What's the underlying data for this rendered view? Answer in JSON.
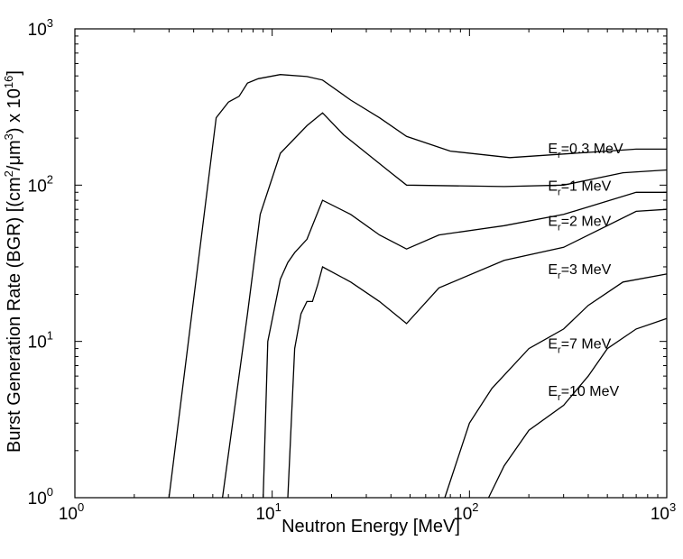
{
  "chart_data": {
    "type": "line",
    "xscale": "log",
    "yscale": "log",
    "xlim": [
      1,
      1000
    ],
    "ylim": [
      1,
      1000
    ],
    "grid": false,
    "xlabel": "Neutron Energy [MeV]",
    "ylabel": {
      "main": "Burst Generation Rate (BGR) [(cm",
      "sup1": "2",
      "mid": "/μm",
      "sup2": "3",
      "end": ") x 10",
      "sup3": "16",
      "close": "]"
    },
    "x_ticks": [
      {
        "base": "10",
        "exp": "0",
        "value": 1
      },
      {
        "base": "10",
        "exp": "1",
        "value": 10
      },
      {
        "base": "10",
        "exp": "2",
        "value": 100
      },
      {
        "base": "10",
        "exp": "3",
        "value": 1000
      }
    ],
    "y_ticks": [
      {
        "base": "10",
        "exp": "0",
        "value": 1
      },
      {
        "base": "10",
        "exp": "1",
        "value": 10
      },
      {
        "base": "10",
        "exp": "2",
        "value": 100
      },
      {
        "base": "10",
        "exp": "3",
        "value": 1000
      }
    ],
    "series": [
      {
        "name": "Er=0.3 MeV",
        "label_main": "E",
        "label_sub": "r",
        "label_rest": "=0.3 MeV",
        "label_at": [
          250,
          160
        ],
        "points": [
          [
            3,
            1
          ],
          [
            5.2,
            270
          ],
          [
            6,
            340
          ],
          [
            6.8,
            370
          ],
          [
            7.5,
            450
          ],
          [
            8.5,
            480
          ],
          [
            11,
            510
          ],
          [
            15,
            495
          ],
          [
            18,
            470
          ],
          [
            25,
            350
          ],
          [
            35,
            270
          ],
          [
            48,
            205
          ],
          [
            80,
            165
          ],
          [
            160,
            150
          ],
          [
            500,
            165
          ],
          [
            700,
            170
          ],
          [
            1000,
            170
          ]
        ]
      },
      {
        "name": "Er=1 MeV",
        "label_main": "E",
        "label_sub": "r",
        "label_rest": "=1 MeV",
        "label_at": [
          250,
          92
        ],
        "points": [
          [
            5.6,
            1
          ],
          [
            7.5,
            15
          ],
          [
            8.7,
            65
          ],
          [
            11,
            160
          ],
          [
            15,
            240
          ],
          [
            18,
            290
          ],
          [
            23,
            210
          ],
          [
            40,
            120
          ],
          [
            48,
            100
          ],
          [
            150,
            98
          ],
          [
            300,
            100
          ],
          [
            600,
            120
          ],
          [
            1000,
            125
          ]
        ]
      },
      {
        "name": "Er=2 MeV",
        "label_main": "E",
        "label_sub": "r",
        "label_rest": "=2 MeV",
        "label_at": [
          250,
          55
        ],
        "points": [
          [
            9,
            1
          ],
          [
            9.5,
            10
          ],
          [
            11,
            25
          ],
          [
            12,
            32
          ],
          [
            13,
            37
          ],
          [
            15,
            45
          ],
          [
            18,
            80
          ],
          [
            25,
            65
          ],
          [
            35,
            48
          ],
          [
            48,
            39
          ],
          [
            70,
            48
          ],
          [
            150,
            55
          ],
          [
            300,
            65
          ],
          [
            700,
            90
          ],
          [
            1000,
            90
          ]
        ]
      },
      {
        "name": "Er=3 MeV",
        "label_main": "E",
        "label_sub": "r",
        "label_rest": "=3 MeV",
        "label_at": [
          250,
          27
        ],
        "points": [
          [
            12,
            1
          ],
          [
            13,
            9
          ],
          [
            14,
            15
          ],
          [
            15,
            18
          ],
          [
            16,
            18
          ],
          [
            17,
            23
          ],
          [
            18,
            30
          ],
          [
            25,
            24
          ],
          [
            35,
            18
          ],
          [
            48,
            13
          ],
          [
            70,
            22
          ],
          [
            150,
            33
          ],
          [
            300,
            40
          ],
          [
            700,
            68
          ],
          [
            1000,
            70
          ]
        ]
      },
      {
        "name": "Er=7 MeV",
        "label_main": "E",
        "label_sub": "r",
        "label_rest": "=7 MeV",
        "label_at": [
          250,
          9
        ],
        "points": [
          [
            75,
            1
          ],
          [
            100,
            3
          ],
          [
            130,
            5
          ],
          [
            200,
            9
          ],
          [
            300,
            12
          ],
          [
            400,
            17
          ],
          [
            600,
            24
          ],
          [
            1000,
            27
          ]
        ]
      },
      {
        "name": "Er=10 MeV",
        "label_main": "E",
        "label_sub": "r",
        "label_rest": "=10 MeV",
        "label_at": [
          250,
          4.5
        ],
        "points": [
          [
            125,
            1
          ],
          [
            150,
            1.6
          ],
          [
            200,
            2.7
          ],
          [
            300,
            3.9
          ],
          [
            400,
            6
          ],
          [
            500,
            9
          ],
          [
            700,
            12
          ],
          [
            1000,
            14
          ]
        ]
      }
    ]
  }
}
